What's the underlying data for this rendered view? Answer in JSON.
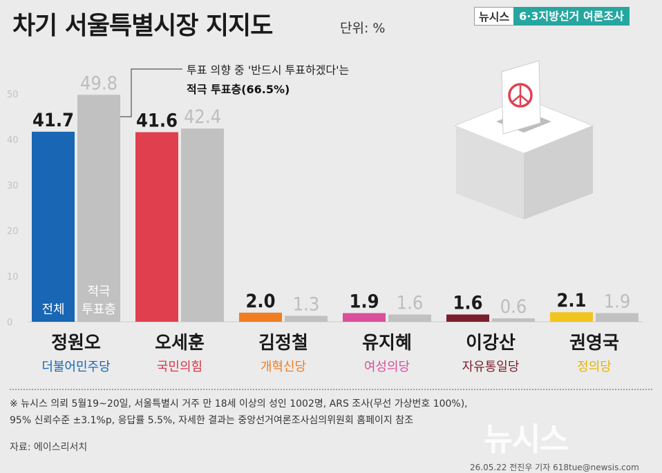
{
  "header": {
    "title": "차기 서울특별시장 지지도",
    "unit": "단위: %",
    "badge_brand": "뉴시스",
    "badge_label": "6·3지방선거 여론조사"
  },
  "annotation": {
    "line1": "투표 의향 중 '반드시 투표하겠다'는",
    "line2": "적극 투표층(66.5%)"
  },
  "chart_data": {
    "type": "bar",
    "title": "차기 서울특별시장 지지도",
    "unit": "%",
    "ylim": [
      0,
      50
    ],
    "yticks": [
      0,
      10,
      20,
      30,
      40,
      50
    ],
    "series": [
      {
        "name": "전체",
        "values": [
          41.7,
          41.6,
          2.0,
          1.9,
          1.6,
          2.1
        ]
      },
      {
        "name": "적극 투표층",
        "values": [
          49.8,
          42.4,
          1.3,
          1.6,
          0.6,
          1.9
        ]
      }
    ],
    "categories": [
      "정원오",
      "오세훈",
      "김정철",
      "유지혜",
      "이강산",
      "권영국"
    ],
    "parties": [
      "더불어민주당",
      "국민의힘",
      "개혁신당",
      "여성의당",
      "자유통일당",
      "정의당"
    ],
    "value_labels": [
      [
        "41.7",
        "41.6",
        "2.0",
        "1.9",
        "1.6",
        "2.1"
      ],
      [
        "49.8",
        "42.4",
        "1.3",
        "1.6",
        "0.6",
        "1.9"
      ]
    ],
    "legend_in_bars": {
      "all": "전체",
      "active_line1": "적극",
      "active_line2": "투표층"
    }
  },
  "colors": {
    "party": [
      "#1866b4",
      "#e0404e",
      "#f07d22",
      "#d94f9b",
      "#7a1f2b",
      "#f2c420"
    ],
    "party_text": [
      "#1866b4",
      "#d6364a",
      "#f07d22",
      "#d94f9b",
      "#7a1f2b",
      "#e8b400"
    ],
    "active": "#c1c1c1",
    "axis": "#c9c9c9"
  },
  "footnote": {
    "line1": "※ 뉴시스 의뢰 5월19~20일, 서울특별시 거주 만 18세 이상의 성인 1002명, ARS 조사(무선 가상번호 100%),",
    "line2": "95% 신뢰수준 ±3.1%p, 응답률 5.5%, 자세한 결과는 중앙선거여론조사심의위원회 홈페이지 참조"
  },
  "source": "자료: 에이스리서치",
  "credit": "26.05.22 전진우 기자 618tue@newsis.com",
  "watermark": "뉴시스"
}
